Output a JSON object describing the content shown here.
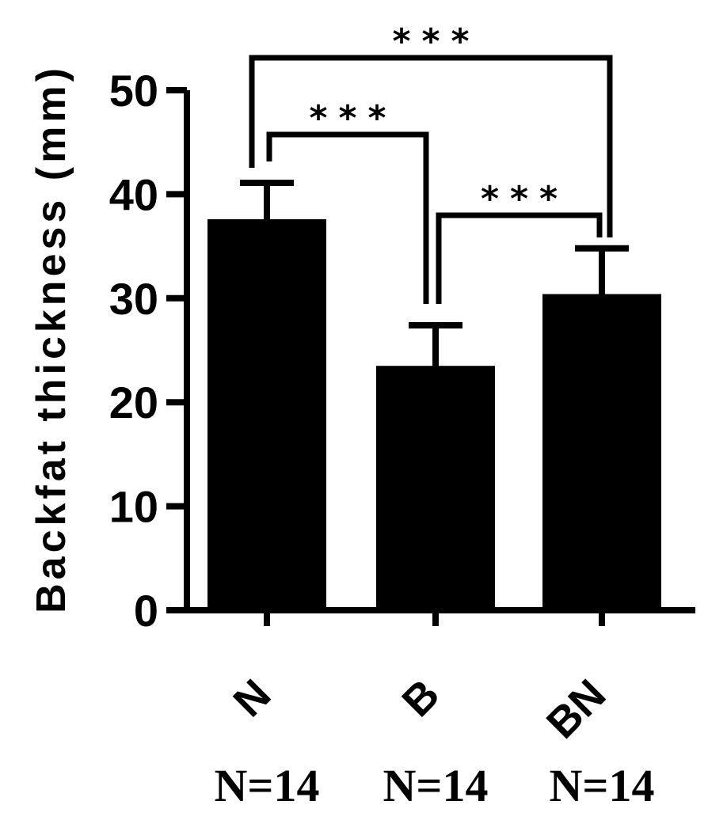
{
  "chart_data": {
    "type": "bar",
    "title": "",
    "xlabel": "",
    "ylabel": "Backfat thickness (mm)",
    "ylim": [
      0,
      50
    ],
    "yticks": [
      0,
      10,
      20,
      30,
      40,
      50
    ],
    "categories": [
      "N",
      "B",
      "BN"
    ],
    "values": [
      37.6,
      23.5,
      30.4
    ],
    "errors": [
      3.5,
      3.9,
      4.4
    ],
    "sample_sizes": [
      "N=14",
      "N=14",
      "N=14"
    ],
    "significance": [
      {
        "from": 0,
        "to": 2,
        "label": "***"
      },
      {
        "from": 0,
        "to": 1,
        "label": "***"
      },
      {
        "from": 1,
        "to": 2,
        "label": "***"
      }
    ],
    "bar_color": "#000000",
    "grid": false,
    "legend": "none"
  }
}
